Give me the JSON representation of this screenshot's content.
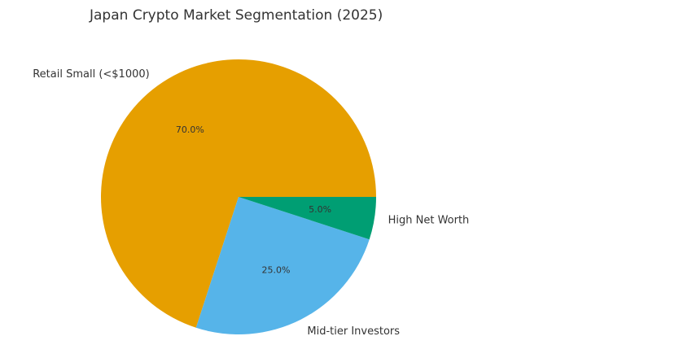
{
  "chart_data": {
    "type": "pie",
    "title": "Japan Crypto Market Segmentation (2025)",
    "categories": [
      "Retail Small (<$1000)",
      "Mid-tier Investors",
      "High Net Worth"
    ],
    "values": [
      70,
      25,
      5
    ],
    "value_labels": [
      "70.0%",
      "25.0%",
      "5.0%"
    ],
    "colors": [
      "#E69F00",
      "#56B4E9",
      "#009E73"
    ]
  }
}
